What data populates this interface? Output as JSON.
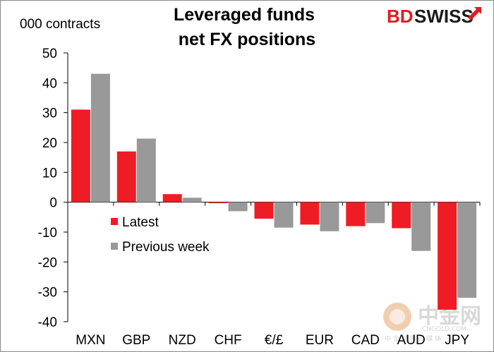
{
  "chart_data": {
    "type": "bar",
    "title": [
      "Leveraged funds",
      "net FX positions"
    ],
    "ylabel": "000 contracts",
    "ylim": [
      -40,
      50
    ],
    "yticks": [
      50,
      40,
      30,
      20,
      10,
      0,
      -10,
      -20,
      -30,
      -40
    ],
    "categories": [
      "MXN",
      "GBP",
      "NZD",
      "CHF",
      "€/£",
      "EUR",
      "CAD",
      "AUD",
      "JPY"
    ],
    "series": [
      {
        "name": "Latest",
        "color": "#ee1c25",
        "values": [
          31,
          17,
          2.7,
          -0.3,
          -5.5,
          -7.5,
          -8,
          -8.7,
          -36
        ]
      },
      {
        "name": "Previous week",
        "color": "#999999",
        "values": [
          43,
          21.3,
          1.5,
          -3,
          -8.5,
          -9.7,
          -7,
          -16.3,
          -32
        ]
      }
    ],
    "legend_position": "lower-left",
    "grid": false
  },
  "logo": {
    "brand_part1": "BD",
    "brand_part2": "SWISS",
    "arrow_icon": "red-arrow-icon"
  },
  "watermark": {
    "text": "中金网",
    "subtext": "CNGOLD.COM",
    "subtext2": "中 金 网 财 经 媒 体"
  }
}
